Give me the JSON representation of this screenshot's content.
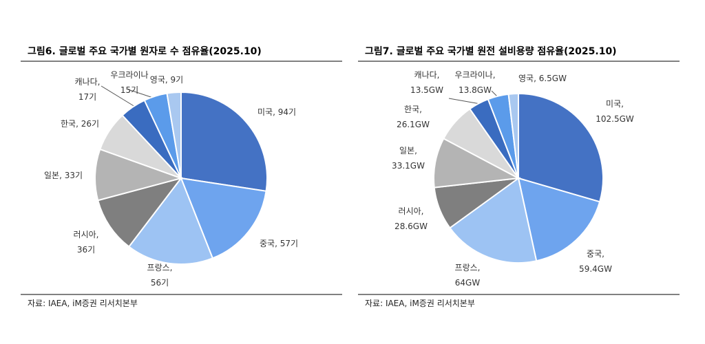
{
  "chart_data": [
    {
      "type": "pie",
      "title": "그림6. 글로벌 주요 국가별 원자로 수 점유율(2025.10)",
      "source": "자료: IAEA, iM증권 리서치본부",
      "values": [
        94,
        57,
        56,
        36,
        33,
        26,
        17,
        15,
        9
      ],
      "value_labels": [
        "미국, 94기",
        "중국, 57기",
        "프랑스,\n56기",
        "러시아,\n36기",
        "일본, 33기",
        "한국, 26기",
        "캐나다,\n17기",
        "우크라이나\n15기",
        "영국, 9기"
      ],
      "colors": [
        "#4472c4",
        "#6ea4ee",
        "#9dc3f3",
        "#7f7f7f",
        "#b4b4b4",
        "#d9d9d9",
        "#3a6cc0",
        "#5b9bea",
        "#a9c8f0"
      ]
    },
    {
      "type": "pie",
      "title": "그림7. 글로벌 주요 국가별 원전 설비용량 점유율(2025.10)",
      "source": "자료: IAEA, iM증권 리서치본부",
      "values": [
        102.5,
        59.4,
        64,
        28.6,
        33.1,
        26.1,
        13.5,
        13.8,
        6.5
      ],
      "value_labels": [
        "미국,\n102.5GW",
        "중국,\n59.4GW",
        "프랑스,\n64GW",
        "러시아,\n28.6GW",
        "일본,\n33.1GW",
        "한국,\n26.1GW",
        "캐나다,\n13.5GW",
        "우크라이나,\n13.8GW",
        "영국, 6.5GW"
      ],
      "colors": [
        "#4472c4",
        "#6ea4ee",
        "#9dc3f3",
        "#7f7f7f",
        "#b4b4b4",
        "#d9d9d9",
        "#3a6cc0",
        "#5b9bea",
        "#a9c8f0"
      ]
    }
  ]
}
